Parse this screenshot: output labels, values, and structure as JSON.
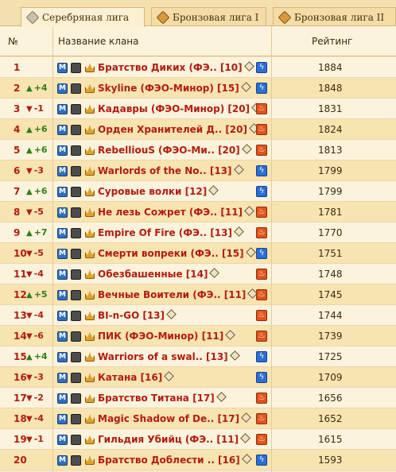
{
  "tabs": [
    {
      "label": "Серебряная лига",
      "gem": "silver",
      "active": true
    },
    {
      "label": "Бронзовая лига I",
      "gem": "bronze",
      "active": false
    },
    {
      "label": "Бронзовая лига II",
      "gem": "bronze",
      "active": false
    }
  ],
  "table": {
    "headers": {
      "num": "№",
      "clan": "Название клана",
      "rating": "Рейтинг"
    },
    "rows": [
      {
        "rank": "1",
        "delta": "",
        "dir": "",
        "clan": "Братство Диких (ФЭ.. [10]",
        "element": "lightning",
        "rating": "1884"
      },
      {
        "rank": "2",
        "delta": "+4",
        "dir": "up",
        "clan": "Skyline (ФЭО-Минор) [15]",
        "element": "lightning",
        "rating": "1848"
      },
      {
        "rank": "3",
        "delta": "-1",
        "dir": "down",
        "clan": "Кадавры (ФЭО-Минор) [20]",
        "element": "fire",
        "rating": "1831"
      },
      {
        "rank": "4",
        "delta": "+6",
        "dir": "up",
        "clan": "Орден Хранителей Д.. [20]",
        "element": "fire",
        "rating": "1824"
      },
      {
        "rank": "5",
        "delta": "+6",
        "dir": "up",
        "clan": "RebelliouS (ФЭО-Ми.. [20]",
        "element": "fire",
        "rating": "1813"
      },
      {
        "rank": "6",
        "delta": "-3",
        "dir": "down",
        "clan": "Warlords of the No.. [13]",
        "element": "lightning",
        "rating": "1799"
      },
      {
        "rank": "7",
        "delta": "+6",
        "dir": "up",
        "clan": "Суровые волки [12]",
        "element": "lightning",
        "rating": "1799"
      },
      {
        "rank": "8",
        "delta": "-5",
        "dir": "down",
        "clan": "Не лезь Сожрет (ФЭ.. [11]",
        "element": "fire",
        "rating": "1781"
      },
      {
        "rank": "9",
        "delta": "+7",
        "dir": "up",
        "clan": "Empire Of Fire (ФЭ.. [13]",
        "element": "fire",
        "rating": "1770"
      },
      {
        "rank": "10",
        "delta": "-5",
        "dir": "down",
        "clan": "Смерти вопреки (ФЭ.. [15]",
        "element": "lightning",
        "rating": "1751"
      },
      {
        "rank": "11",
        "delta": "-4",
        "dir": "down",
        "clan": "Обезбашенные [14]",
        "element": "fire",
        "rating": "1748"
      },
      {
        "rank": "12",
        "delta": "+5",
        "dir": "up",
        "clan": "Вечные Воители (ФЭ.. [11]",
        "element": "fire",
        "rating": "1745"
      },
      {
        "rank": "13",
        "delta": "-4",
        "dir": "down",
        "clan": "BI-n-GO [13]",
        "element": "fire",
        "rating": "1744"
      },
      {
        "rank": "14",
        "delta": "-6",
        "dir": "down",
        "clan": "ПИК (ФЭО-Минор) [11]",
        "element": "fire",
        "rating": "1739"
      },
      {
        "rank": "15",
        "delta": "+4",
        "dir": "up",
        "clan": "Warriors of a swal.. [13]",
        "element": "lightning",
        "rating": "1725"
      },
      {
        "rank": "16",
        "delta": "-3",
        "dir": "down",
        "clan": "Катана [16]",
        "element": "lightning",
        "rating": "1709"
      },
      {
        "rank": "17",
        "delta": "-2",
        "dir": "down",
        "clan": "Братство Титана [17]",
        "element": "fire",
        "rating": "1656"
      },
      {
        "rank": "18",
        "delta": "-4",
        "dir": "down",
        "clan": "Magic Shadow of De.. [17]",
        "element": "fire",
        "rating": "1652"
      },
      {
        "rank": "19",
        "delta": "-1",
        "dir": "down",
        "clan": "Гильдия Убийц (ФЭ.. [11]",
        "element": "fire",
        "rating": "1615"
      },
      {
        "rank": "20",
        "delta": "",
        "dir": "",
        "clan": "Братство Доблести .. [16]",
        "element": "lightning",
        "rating": "1593"
      }
    ]
  },
  "colors": {
    "clan_name": "#b21c10",
    "up": "#2f7d1c",
    "down": "#b21c10",
    "lightning": "#2b6fd6",
    "fire": "#e2541b"
  }
}
